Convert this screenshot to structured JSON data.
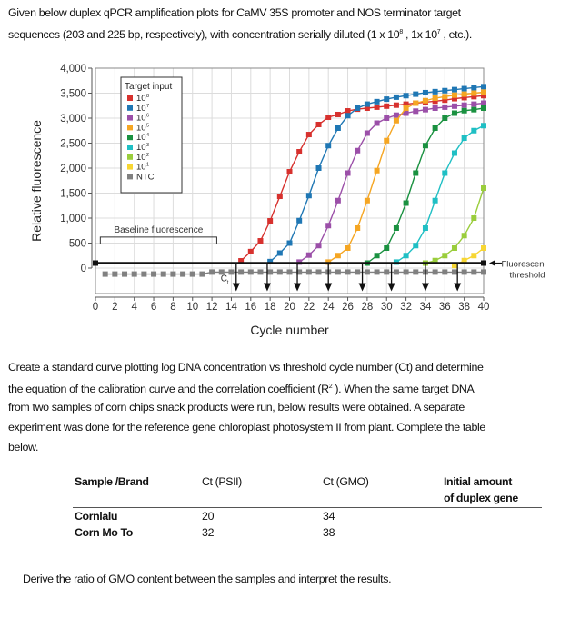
{
  "intro": {
    "line1": "Given below duplex qPCR amplification plots for CaMV 35S  promoter and NOS terminator target",
    "line2_a": "sequences (203 and 225  bp, respectively), with concentration serially diluted (1 x 10",
    "line2_sup1": "8",
    "line2_b": " , 1x 10",
    "line2_sup2": "7",
    "line2_c": "  , etc.)."
  },
  "chart_data": {
    "type": "line",
    "xlabel": "Cycle number",
    "ylabel": "Relative fluorescence",
    "xlim": [
      0,
      40
    ],
    "ylim": [
      -700,
      4000
    ],
    "x_ticks": [
      0,
      2,
      4,
      6,
      8,
      10,
      12,
      14,
      16,
      18,
      20,
      22,
      24,
      26,
      28,
      30,
      32,
      34,
      36,
      38,
      40
    ],
    "y_ticks": [
      0,
      500,
      1000,
      1500,
      2000,
      2500,
      3000,
      3500,
      4000
    ],
    "y_tick_labels": [
      "0",
      "500",
      "1,000",
      "1,500",
      "2,000",
      "2,500",
      "3,000",
      "3,500",
      "4,000"
    ],
    "grid": true,
    "legend_title": "Target input",
    "legend_placement": "top-left",
    "series": [
      {
        "name": "10^8",
        "label_base": "10",
        "label_exp": "8",
        "color": "#d7312e",
        "start_cycle": 15,
        "values": [
          145,
          330,
          545,
          945,
          1436,
          1927,
          2327,
          2672,
          2873,
          3018,
          3073,
          3145,
          3180,
          3200,
          3220,
          3240,
          3260,
          3280,
          3300,
          3320,
          3340,
          3360,
          3390,
          3410,
          3430,
          3450
        ]
      },
      {
        "name": "10^7",
        "label_base": "10",
        "label_exp": "7",
        "color": "#1f77b4",
        "start_cycle": 18,
        "values": [
          130,
          300,
          500,
          950,
          1450,
          2000,
          2450,
          2800,
          3050,
          3200,
          3280,
          3330,
          3380,
          3420,
          3450,
          3480,
          3510,
          3530,
          3550,
          3570,
          3590,
          3610,
          3630
        ]
      },
      {
        "name": "10^6",
        "label_base": "10",
        "label_exp": "6",
        "color": "#9b4fa8",
        "start_cycle": 21,
        "values": [
          120,
          260,
          450,
          850,
          1350,
          1900,
          2350,
          2700,
          2900,
          3000,
          3060,
          3100,
          3140,
          3170,
          3200,
          3220,
          3240,
          3260,
          3280,
          3300
        ]
      },
      {
        "name": "10^5",
        "label_base": "10",
        "label_exp": "5",
        "color": "#f5a623",
        "start_cycle": 24,
        "values": [
          120,
          250,
          400,
          800,
          1350,
          1950,
          2550,
          2950,
          3200,
          3300,
          3350,
          3400,
          3430,
          3460,
          3480,
          3500,
          3520
        ]
      },
      {
        "name": "10^4",
        "label_base": "10",
        "label_exp": "4",
        "color": "#1a9140",
        "start_cycle": 28,
        "values": [
          100,
          250,
          400,
          800,
          1300,
          1900,
          2450,
          2800,
          3000,
          3100,
          3150,
          3170,
          3200
        ]
      },
      {
        "name": "10^3",
        "label_base": "10",
        "label_exp": "3",
        "color": "#1fbfc4",
        "start_cycle": 31,
        "values": [
          120,
          250,
          450,
          800,
          1350,
          1900,
          2300,
          2600,
          2750,
          2850
        ]
      },
      {
        "name": "10^2",
        "label_base": "10",
        "label_exp": "2",
        "color": "#9acd3c",
        "start_cycle": 34,
        "values": [
          100,
          150,
          250,
          400,
          650,
          1000,
          1600
        ]
      },
      {
        "name": "10^1",
        "label_base": "10",
        "label_exp": "1",
        "color": "#f7d633",
        "start_cycle": 37,
        "values": [
          50,
          150,
          250,
          400
        ]
      },
      {
        "name": "NTC",
        "label_base": "NTC",
        "label_exp": "",
        "color": "#808080",
        "start_cycle": 1,
        "values": [
          -120,
          -120,
          -120,
          -120,
          -120,
          -120,
          -120,
          -120,
          -120,
          -120,
          -120,
          -80,
          -80,
          -80,
          -80,
          -80,
          -80,
          -80,
          -80,
          -80,
          -80,
          -80,
          -80,
          -80,
          -80,
          -80,
          -80,
          -80,
          -80,
          -80,
          -80,
          -80,
          -80,
          -80,
          -80,
          -80,
          -80,
          -80,
          -80,
          -80
        ]
      }
    ],
    "threshold": 100,
    "ct_values": [
      14.5,
      17.7,
      20.8,
      24,
      27.5,
      30.5,
      34,
      37.3
    ],
    "baseline_range": [
      0.5,
      12.5
    ],
    "annotations": {
      "baseline": "Baseline fluorescence",
      "ct_base": "C",
      "ct_sub": "t",
      "threshold_line1": "Fluorescence",
      "threshold_line2": "threshold"
    }
  },
  "body": {
    "lines": [
      "Create a standard curve plotting log DNA concentration vs threshold cycle number (Ct) and determine",
      "the equation of the calibration  curve and the correlation coefficient (R",
      "from two samples of corn chips snack products were run, below results were obtained. A separate",
      "experiment was done for the reference gene chloroplast photosystem II from plant. Complete the table",
      "below."
    ],
    "line2_sup": "2",
    "line2_tail": " ). When the same target DNA"
  },
  "table": {
    "headers": [
      "Sample /Brand",
      "Ct (PSII)",
      "Ct (GMO)",
      "Initial amount",
      "of duplex gene"
    ],
    "rows": [
      [
        "Cornlalu",
        "20",
        "34",
        ""
      ],
      [
        "Corn Mo To",
        "32",
        "38",
        ""
      ]
    ]
  },
  "footer": "Derive the ratio of GMO content between the samples and interpret the results."
}
